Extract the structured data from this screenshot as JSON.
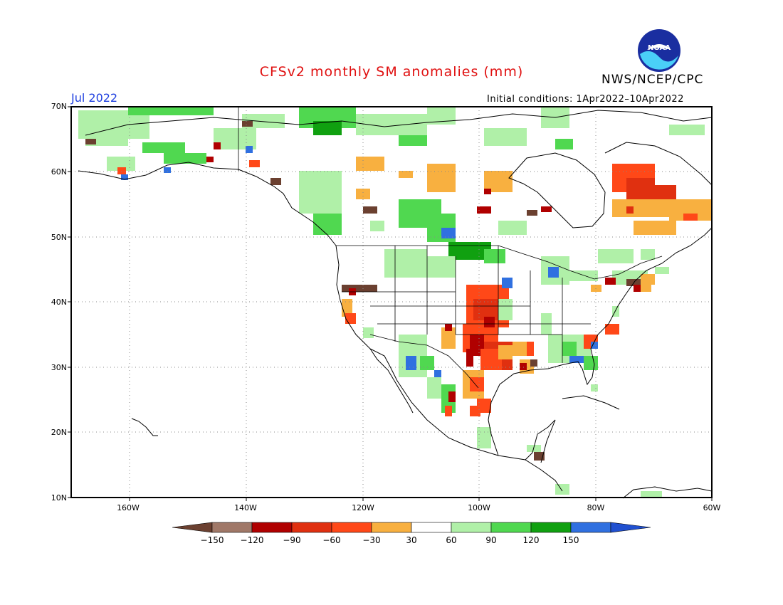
{
  "title": "CFSv2 monthly SM anomalies (mm)",
  "agency": "NWS/NCEP/CPC",
  "logo_text": "NOAA",
  "valid_month": "Jul 2022",
  "initial_conditions": "Initial conditions: 1Apr2022–10Apr2022",
  "lat_labels": [
    "70N",
    "60N",
    "50N",
    "40N",
    "30N",
    "20N",
    "10N"
  ],
  "lon_labels": [
    "160W",
    "140W",
    "120W",
    "100W",
    "80W",
    "60W"
  ],
  "colorbar": {
    "labels": [
      "−150",
      "−120",
      "−90",
      "−60",
      "−30",
      "30",
      "60",
      "90",
      "120",
      "150"
    ],
    "colors": [
      "#6b4030",
      "#a07868",
      "#b00000",
      "#e03010",
      "#ff4818",
      "#f8b040",
      "#ffffff",
      "#b0f0a8",
      "#50d850",
      "#10a010",
      "#3070e0",
      "#2050d0"
    ]
  },
  "colors": {
    "title": "#e01010",
    "month": "#2040e0",
    "grid": "#888888"
  }
}
